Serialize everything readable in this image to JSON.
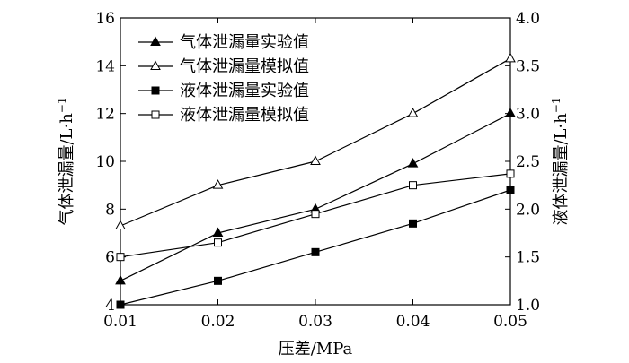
{
  "chart_data": {
    "type": "line",
    "xlabel": "压差/MPa",
    "ylabel": "气体泄漏量/L·h",
    "ylabel_sup": "−1",
    "y2label": "液体泄漏量/L·h",
    "y2label_sup": "−1",
    "x": [
      0.01,
      0.02,
      0.03,
      0.04,
      0.05
    ],
    "x_tick_labels": [
      "0.01",
      "0.02",
      "0.03",
      "0.04",
      "0.05"
    ],
    "xlim": [
      0.01,
      0.05
    ],
    "ylim": [
      4,
      16
    ],
    "y_ticks": [
      4,
      6,
      8,
      10,
      12,
      14,
      16
    ],
    "y2lim": [
      1.0,
      4.0
    ],
    "y2_tick_labels": [
      "1.0",
      "1.5",
      "2.0",
      "2.5",
      "3.0",
      "3.5",
      "4.0"
    ],
    "grid": false,
    "legend_position": "top-left",
    "series": [
      {
        "name": "气体泄漏量实验值",
        "axis": "left",
        "marker": "filled-triangle",
        "values": [
          5.0,
          7.0,
          8.0,
          9.9,
          12.0
        ]
      },
      {
        "name": "气体泄漏量模拟值",
        "axis": "left",
        "marker": "open-triangle",
        "values": [
          7.3,
          9.0,
          10.0,
          12.0,
          14.3
        ]
      },
      {
        "name": "液体泄漏量实验值",
        "axis": "right",
        "marker": "filled-square",
        "values": [
          1.0,
          1.25,
          1.55,
          1.85,
          2.2
        ]
      },
      {
        "name": "液体泄漏量模拟值",
        "axis": "right",
        "marker": "open-square",
        "values": [
          1.5,
          1.65,
          1.95,
          2.25,
          2.37
        ]
      }
    ]
  }
}
